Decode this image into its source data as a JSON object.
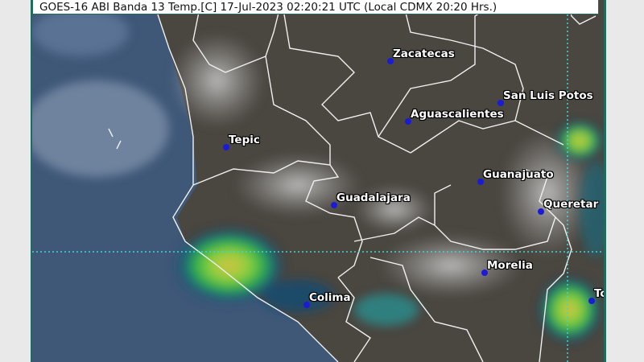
{
  "title": "GOES-16 ABI Banda 13 Temp.[C] 17-Jul-2023 02:20:21 UTC (Local CDMX  20:20 Hrs.)",
  "colors": {
    "border": "#1f6b5e",
    "city_marker": "#1b1bd6",
    "grid_line": "#3fd6d6",
    "storm_green": "#3fc83a",
    "storm_core": "#d8d040"
  },
  "cities": [
    {
      "name": "Zacatecas"
    },
    {
      "name": "San Luis Potos"
    },
    {
      "name": "Aguascalientes"
    },
    {
      "name": "Tepic"
    },
    {
      "name": "Guanajuato"
    },
    {
      "name": "Guadalajara"
    },
    {
      "name": "Queretar"
    },
    {
      "name": "Morelia"
    },
    {
      "name": "Colima"
    },
    {
      "name": "To"
    }
  ]
}
